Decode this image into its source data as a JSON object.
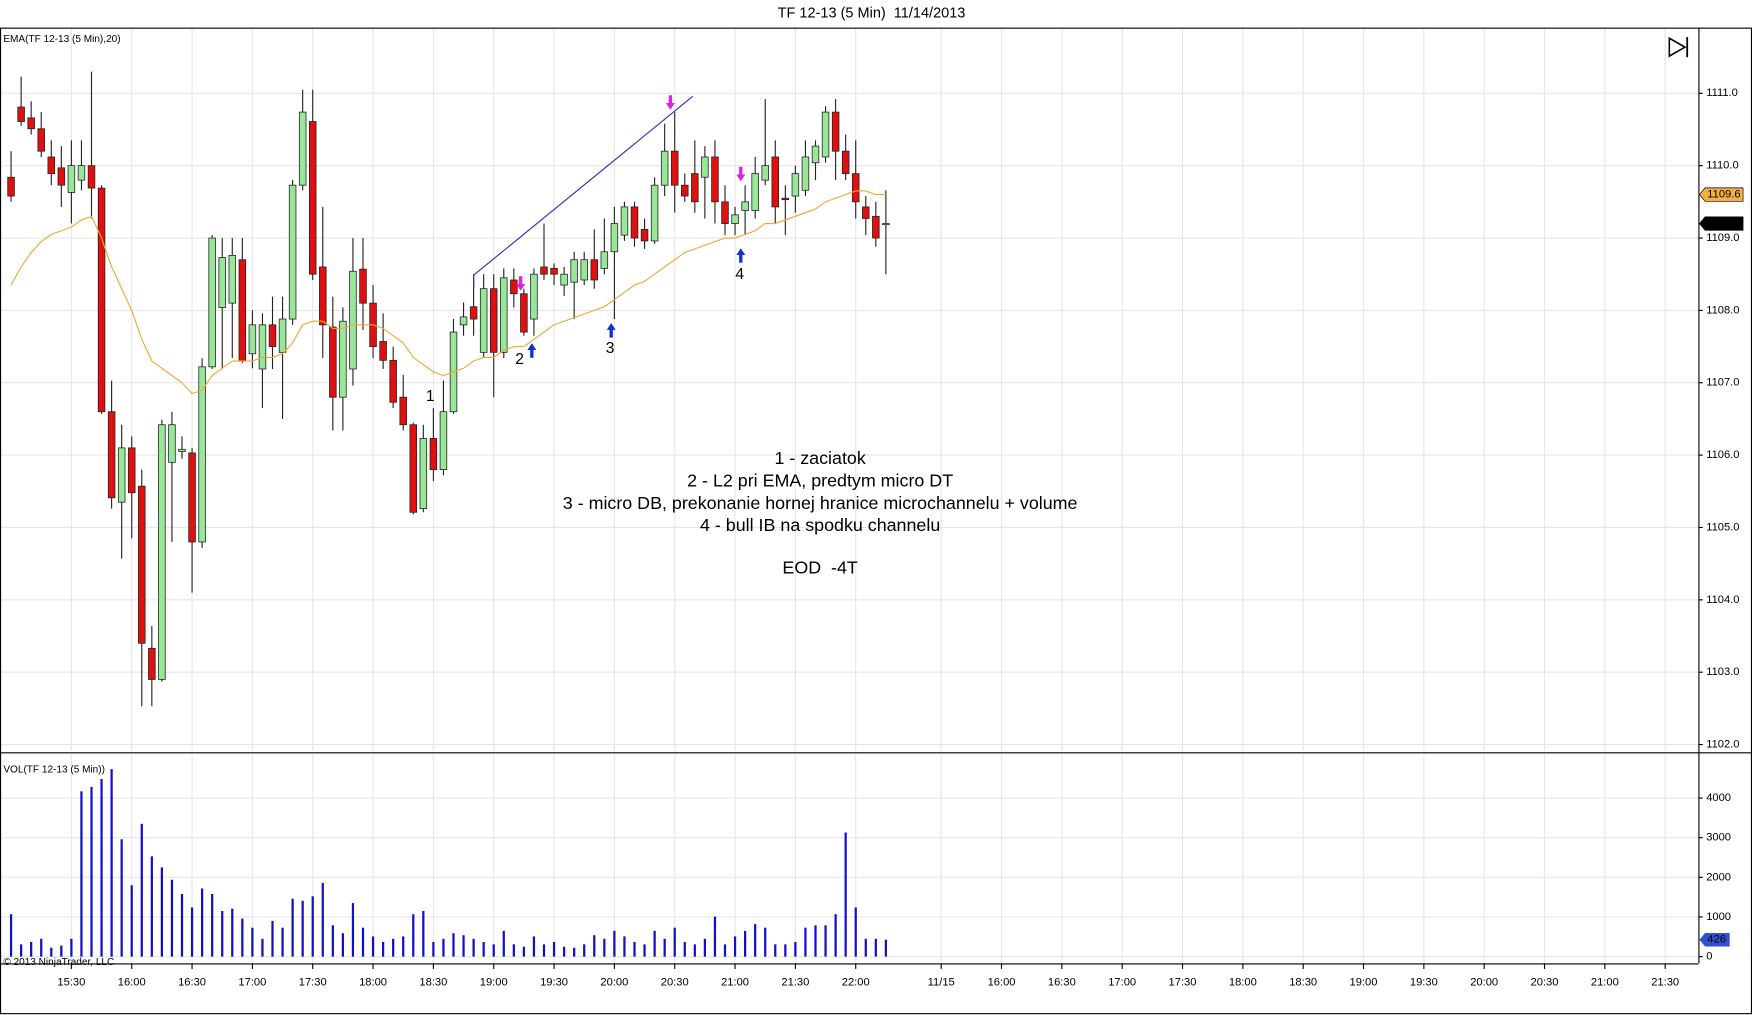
{
  "chart_data": [
    {
      "type": "candlestick",
      "title": "TF 12-13 (5 Min)  11/14/2013",
      "label": "EMA(TF 12-13 (5 Min),20)",
      "copyright": "© 2013 NinjaTrader, LLC",
      "up_color": "#98e698",
      "down_color": "#e01010",
      "ema_color": "#f0a830",
      "open": [
        1109.84,
        1110.81,
        1110.66,
        1110.51,
        1110.12,
        1109.97,
        1109.63,
        1109.8,
        1110.0,
        1109.69,
        1106.6,
        1105.35,
        1106.1,
        1105.57,
        1103.33,
        1102.9,
        1105.9,
        1106.05,
        1106.03,
        1104.8,
        1107.22,
        1108.04,
        1108.1,
        1108.7,
        1107.4,
        1107.19,
        1107.8,
        1107.42,
        1107.88,
        1109.73,
        1110.61,
        1108.6,
        1107.77,
        1106.8,
        1107.19,
        1108.57,
        1108.1,
        1107.57,
        1107.31,
        1106.8,
        1106.42,
        1105.26,
        1106.23,
        1105.8,
        1106.6,
        1107.8,
        1108.05,
        1107.42,
        1108.3,
        1107.42,
        1108.42,
        1108.23,
        1107.88,
        1108.6,
        1108.58,
        1108.35,
        1108.39,
        1108.42,
        1108.7,
        1108.58,
        1108.81,
        1109.04,
        1109.43,
        1109.12,
        1108.96,
        1109.73,
        1110.2,
        1109.73,
        1109.89,
        1109.84,
        1110.12,
        1109.5,
        1109.2,
        1109.38,
        1109.38,
        1109.8,
        1110.12,
        1109.55,
        1109.58,
        1109.66,
        1110.04,
        1110.12,
        1110.74,
        1110.2,
        1109.89,
        1109.43,
        1109.3,
        1109.2
      ],
      "high": [
        1110.2,
        1111.23,
        1110.89,
        1110.74,
        1110.35,
        1110.27,
        1110.35,
        1110.35,
        1111.3,
        1109.73,
        1107.03,
        1106.42,
        1106.26,
        1105.8,
        1103.64,
        1106.49,
        1106.6,
        1106.26,
        1106.1,
        1107.34,
        1109.04,
        1109.0,
        1109.0,
        1109.0,
        1108.0,
        1107.96,
        1108.19,
        1108.19,
        1109.8,
        1111.05,
        1111.05,
        1109.43,
        1108.19,
        1108.04,
        1109.0,
        1109.0,
        1108.35,
        1107.96,
        1107.5,
        1107.11,
        1106.45,
        1106.42,
        1106.65,
        1107.03,
        1107.88,
        1108.11,
        1108.5,
        1108.5,
        1108.5,
        1108.58,
        1108.58,
        1108.3,
        1108.58,
        1109.2,
        1108.65,
        1108.6,
        1108.81,
        1108.81,
        1109.12,
        1109.27,
        1109.43,
        1109.5,
        1109.5,
        1109.27,
        1109.84,
        1110.58,
        1110.74,
        1109.89,
        1110.35,
        1110.27,
        1110.35,
        1109.73,
        1109.43,
        1109.73,
        1110.12,
        1110.92,
        1110.35,
        1109.73,
        1110.0,
        1110.35,
        1110.35,
        1110.82,
        1110.92,
        1110.43,
        1110.35,
        1109.58,
        1109.5,
        1109.66
      ],
      "low": [
        1109.5,
        1110.55,
        1110.43,
        1110.12,
        1109.73,
        1109.43,
        1109.2,
        1109.66,
        1109.27,
        1106.57,
        1105.26,
        1104.57,
        1104.85,
        1102.53,
        1102.53,
        1102.87,
        1104.8,
        1105.95,
        1104.1,
        1104.72,
        1107.19,
        1107.19,
        1107.34,
        1107.27,
        1107.2,
        1106.65,
        1107.19,
        1106.5,
        1107.8,
        1109.66,
        1108.42,
        1107.34,
        1106.34,
        1106.34,
        1106.96,
        1107.73,
        1107.34,
        1107.19,
        1106.65,
        1106.34,
        1105.18,
        1105.21,
        1105.64,
        1105.72,
        1106.57,
        1107.65,
        1107.65,
        1107.34,
        1106.8,
        1107.34,
        1108.04,
        1107.65,
        1107.65,
        1108.42,
        1108.35,
        1108.2,
        1107.88,
        1108.35,
        1108.3,
        1108.5,
        1107.88,
        1108.96,
        1108.88,
        1108.85,
        1108.92,
        1109.58,
        1109.35,
        1109.5,
        1109.35,
        1109.27,
        1109.2,
        1109.04,
        1109.04,
        1109.04,
        1109.27,
        1109.73,
        1109.2,
        1109.04,
        1109.35,
        1109.58,
        1109.8,
        1110.04,
        1109.8,
        1109.8,
        1109.27,
        1109.04,
        1108.88,
        1108.5
      ],
      "close": [
        1109.58,
        1110.61,
        1110.51,
        1110.2,
        1109.89,
        1109.73,
        1110.0,
        1110.0,
        1109.69,
        1106.6,
        1105.41,
        1106.1,
        1105.48,
        1103.4,
        1102.9,
        1106.42,
        1106.42,
        1106.08,
        1104.8,
        1107.22,
        1109.0,
        1108.73,
        1108.76,
        1107.3,
        1107.8,
        1107.8,
        1107.5,
        1107.88,
        1109.73,
        1110.74,
        1108.5,
        1107.8,
        1106.8,
        1107.85,
        1108.54,
        1108.1,
        1107.5,
        1107.31,
        1106.73,
        1106.42,
        1105.21,
        1106.23,
        1105.8,
        1106.6,
        1107.7,
        1107.91,
        1107.88,
        1108.3,
        1107.42,
        1108.45,
        1108.23,
        1107.7,
        1108.5,
        1108.5,
        1108.5,
        1108.5,
        1108.7,
        1108.7,
        1108.42,
        1108.81,
        1109.2,
        1109.43,
        1109.0,
        1108.96,
        1109.73,
        1110.2,
        1109.73,
        1109.58,
        1109.5,
        1110.12,
        1109.5,
        1109.2,
        1109.32,
        1109.5,
        1109.89,
        1110.0,
        1109.43,
        1109.53,
        1109.89,
        1110.12,
        1110.27,
        1110.74,
        1110.2,
        1109.89,
        1109.5,
        1109.27,
        1109.0,
        1109.2
      ],
      "ema": [
        1108.35,
        1108.6,
        1108.8,
        1108.95,
        1109.05,
        1109.1,
        1109.15,
        1109.25,
        1109.3,
        1109.0,
        1108.6,
        1108.3,
        1108.0,
        1107.6,
        1107.3,
        1107.2,
        1107.1,
        1107.0,
        1106.85,
        1106.9,
        1107.1,
        1107.2,
        1107.3,
        1107.3,
        1107.3,
        1107.35,
        1107.35,
        1107.4,
        1107.55,
        1107.8,
        1107.85,
        1107.85,
        1107.75,
        1107.75,
        1107.8,
        1107.8,
        1107.8,
        1107.75,
        1107.65,
        1107.55,
        1107.35,
        1107.25,
        1107.15,
        1107.1,
        1107.15,
        1107.2,
        1107.3,
        1107.35,
        1107.35,
        1107.45,
        1107.5,
        1107.5,
        1107.6,
        1107.7,
        1107.8,
        1107.85,
        1107.9,
        1107.95,
        1108.0,
        1108.05,
        1108.15,
        1108.25,
        1108.35,
        1108.4,
        1108.5,
        1108.6,
        1108.7,
        1108.8,
        1108.85,
        1108.9,
        1108.95,
        1109.0,
        1109.0,
        1109.05,
        1109.1,
        1109.2,
        1109.2,
        1109.25,
        1109.3,
        1109.35,
        1109.4,
        1109.5,
        1109.55,
        1109.6,
        1109.65,
        1109.65,
        1109.6,
        1109.6
      ],
      "last_price": 1109.2,
      "ema_last": 1109.6,
      "ylim": [
        1101.91,
        1111.9
      ],
      "yticks": [
        {
          "value": 1102,
          "label": "1102.0"
        },
        {
          "value": 1103,
          "label": "1103.0"
        },
        {
          "value": 1104,
          "label": "1104.0"
        },
        {
          "value": 1105,
          "label": "1105.0"
        },
        {
          "value": 1106,
          "label": "1106.0"
        },
        {
          "value": 1107,
          "label": "1107.0"
        },
        {
          "value": 1108,
          "label": "1108.0"
        },
        {
          "value": 1109,
          "label": "1109.0"
        },
        {
          "value": 1110,
          "label": "1110.0"
        },
        {
          "value": 1111,
          "label": "1111.0"
        }
      ],
      "xlim": [
        -1.1,
        167.8
      ],
      "xticks": [
        {
          "value": 6,
          "label": "15:30"
        },
        {
          "value": 12,
          "label": "16:00"
        },
        {
          "value": 18,
          "label": "16:30"
        },
        {
          "value": 24,
          "label": "17:00"
        },
        {
          "value": 30,
          "label": "17:30"
        },
        {
          "value": 36,
          "label": "18:00"
        },
        {
          "value": 42,
          "label": "18:30"
        },
        {
          "value": 48,
          "label": "19:00"
        },
        {
          "value": 54,
          "label": "19:30"
        },
        {
          "value": 60,
          "label": "20:00"
        },
        {
          "value": 66,
          "label": "20:30"
        },
        {
          "value": 72,
          "label": "21:00"
        },
        {
          "value": 78,
          "label": "21:30"
        },
        {
          "value": 84,
          "label": "22:00"
        },
        {
          "value": 92.5,
          "label": "11/15"
        },
        {
          "value": 98.5,
          "label": "16:00"
        },
        {
          "value": 104.5,
          "label": "16:30"
        },
        {
          "value": 110.5,
          "label": "17:00"
        },
        {
          "value": 116.5,
          "label": "17:30"
        },
        {
          "value": 122.5,
          "label": "18:00"
        },
        {
          "value": 128.5,
          "label": "18:30"
        },
        {
          "value": 134.5,
          "label": "19:00"
        },
        {
          "value": 140.5,
          "label": "19:30"
        },
        {
          "value": 146.5,
          "label": "20:00"
        },
        {
          "value": 152.5,
          "label": "20:30"
        },
        {
          "value": 158.5,
          "label": "21:00"
        },
        {
          "value": 164.5,
          "label": "21:30"
        }
      ],
      "grid": true,
      "annotations": [
        "1 - zaciatok",
        "2 - L2 pri EMA, predtym micro DT",
        "3 - micro DB, prekonanie hornej hranice microchannelu + volume",
        "4 - bull IB na spodku channelu",
        "EOD  -4T"
      ],
      "markers": [
        "1",
        "2",
        "3",
        "4"
      ]
    },
    {
      "type": "bar",
      "label": "VOL(TF 12-13 (5 Min))",
      "color": "#1010c8",
      "values": [
        1070,
        310,
        370,
        450,
        225,
        280,
        450,
        4170,
        4280,
        4480,
        4730,
        2960,
        1800,
        3350,
        2530,
        2250,
        1940,
        1580,
        1240,
        1720,
        1580,
        1150,
        1210,
        960,
        730,
        450,
        900,
        730,
        1460,
        1410,
        1520,
        1860,
        790,
        590,
        1350,
        730,
        510,
        370,
        450,
        510,
        1070,
        1150,
        370,
        450,
        590,
        540,
        450,
        370,
        310,
        650,
        310,
        250,
        510,
        310,
        370,
        250,
        225,
        310,
        540,
        450,
        650,
        510,
        370,
        310,
        650,
        450,
        730,
        370,
        310,
        450,
        1010,
        310,
        510,
        650,
        820,
        730,
        310,
        310,
        370,
        730,
        790,
        790,
        1070,
        3130,
        1240,
        450,
        450,
        426
      ],
      "last_value": 426,
      "ylim": [
        -170,
        5100
      ],
      "yticks": [
        0,
        1000,
        2000,
        3000,
        4000
      ],
      "grid": true
    }
  ]
}
